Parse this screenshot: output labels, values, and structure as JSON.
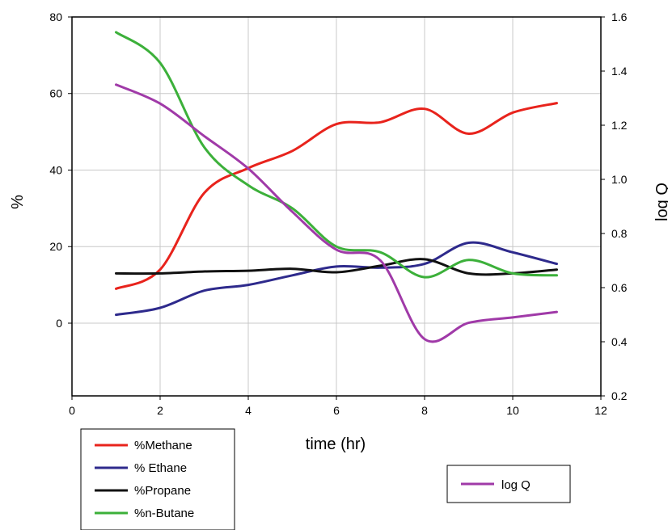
{
  "chart_data": {
    "type": "line",
    "xlabel": "time (hr)",
    "ylabel": "%",
    "y2label": "log Q",
    "xlim": [
      0,
      12
    ],
    "ylim": [
      -19,
      80
    ],
    "y2lim": [
      0.2,
      1.6
    ],
    "x_ticks": [
      "0",
      "2",
      "4",
      "6",
      "8",
      "10",
      "12"
    ],
    "y_ticks": [
      "0",
      "20",
      "40",
      "60",
      "80"
    ],
    "y2_ticks": [
      "0.2",
      "0.4",
      "0.6",
      "0.8",
      "1.0",
      "1.2",
      "1.4",
      "1.6"
    ],
    "grid": true,
    "x": [
      1,
      2,
      3,
      4,
      5,
      6,
      7,
      8,
      9,
      10,
      11
    ],
    "series": [
      {
        "name": "%Methane",
        "axis": "left",
        "color": "#e8231c",
        "values": [
          9,
          14,
          34,
          40.5,
          45,
          52,
          52.5,
          56,
          49.5,
          55,
          57.5
        ]
      },
      {
        "name": "% Ethane",
        "axis": "left",
        "color": "#2e2a8c",
        "values": [
          2.2,
          4,
          8.5,
          10,
          12.5,
          14.8,
          14.5,
          15.5,
          21,
          18.5,
          15.5
        ]
      },
      {
        "name": "%Propane",
        "axis": "left",
        "color": "#111111",
        "values": [
          13,
          13,
          13.5,
          13.7,
          14.2,
          13.3,
          15,
          16.7,
          13,
          13,
          14
        ]
      },
      {
        "name": "%n-Butane",
        "axis": "left",
        "color": "#3cb03a",
        "values": [
          76,
          68,
          46,
          36,
          30,
          20,
          18.5,
          12,
          16.5,
          13,
          12.5
        ]
      },
      {
        "name": "log Q",
        "axis": "right",
        "color": "#a03aa8",
        "values": [
          1.35,
          1.28,
          1.16,
          1.04,
          0.88,
          0.74,
          0.7,
          0.41,
          0.47,
          0.49,
          0.51
        ]
      }
    ],
    "legend_left": [
      "%Methane",
      "% Ethane",
      "%Propane",
      "%n-Butane"
    ],
    "legend_right": [
      "log Q"
    ]
  }
}
